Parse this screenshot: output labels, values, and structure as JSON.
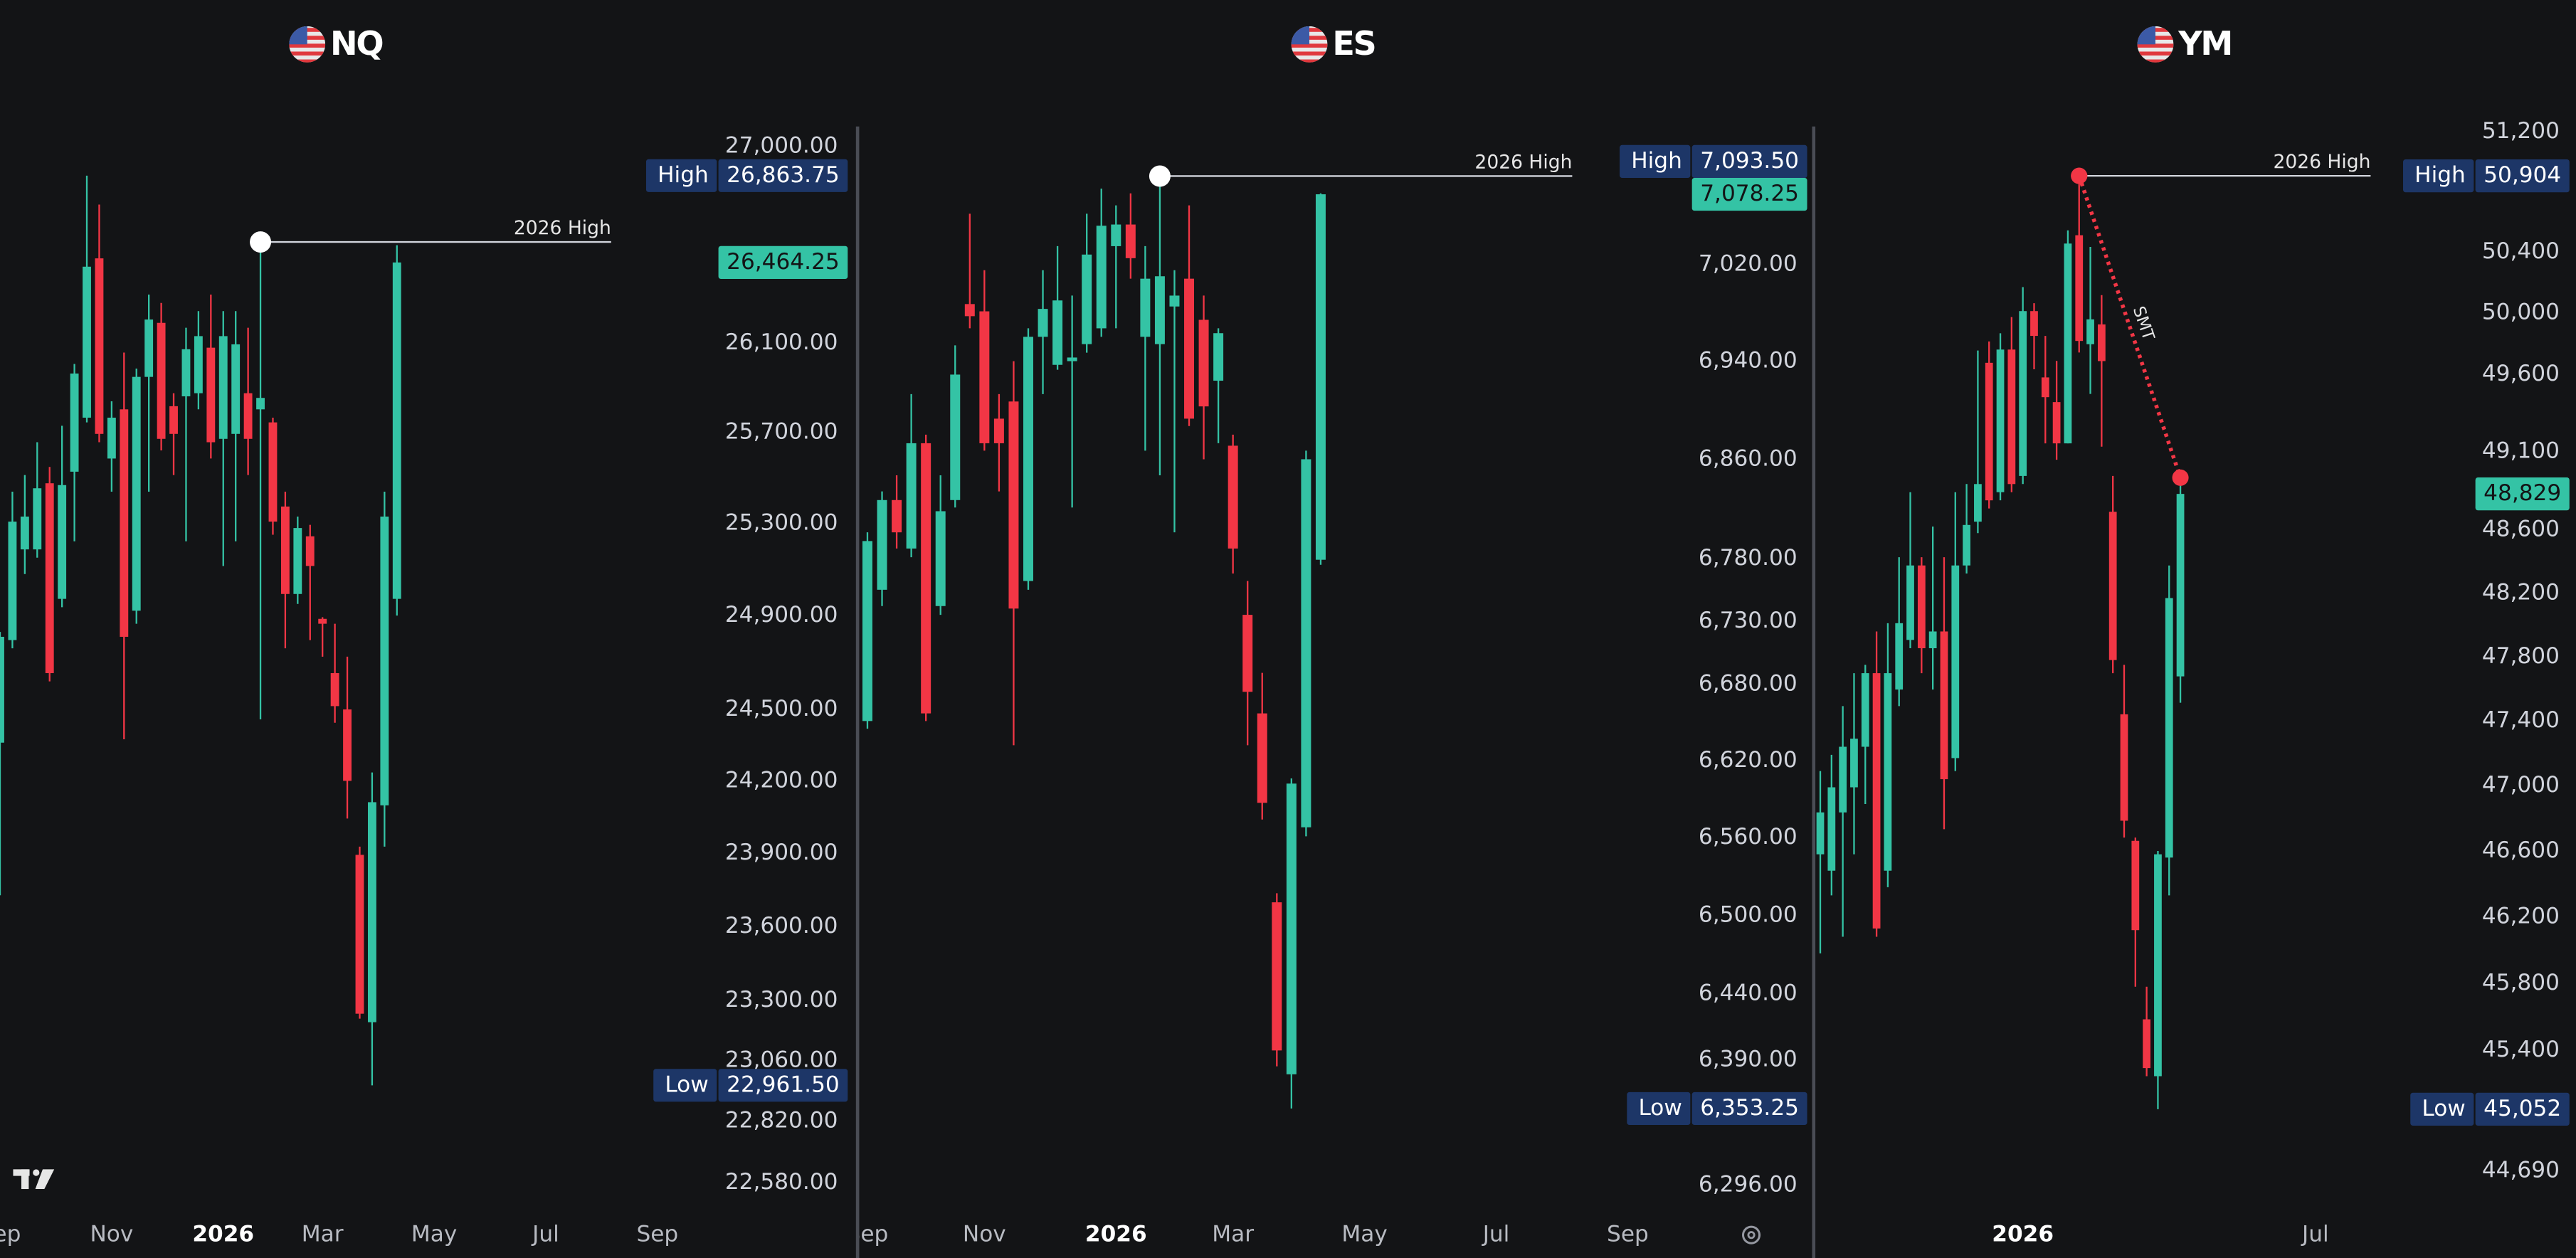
{
  "chart_data": [
    {
      "type": "candlestick",
      "title": "NQ",
      "log_scale": true,
      "grid": false,
      "up_color": "#34c3a5",
      "down_color": "#f23645",
      "categories": [
        "Sep",
        null,
        null,
        null,
        null,
        null,
        null,
        null,
        null,
        "Nov",
        null,
        null,
        null,
        null,
        null,
        null,
        null,
        null,
        "2026",
        null,
        null,
        null,
        null,
        null,
        null,
        null,
        "Mar",
        null,
        null,
        null,
        null,
        null,
        null,
        null,
        null,
        "May",
        null,
        null,
        null,
        null,
        null,
        null,
        null,
        null,
        "Jul",
        null,
        null,
        null,
        null,
        null,
        null,
        null,
        null,
        "Sep",
        null,
        null
      ],
      "open": [
        24360,
        24795,
        25186,
        25186,
        25475,
        24972,
        25526,
        25765,
        26483,
        25584,
        25802,
        24921,
        25947,
        26190,
        25816,
        25860,
        25874,
        26078,
        25671,
        25693,
        25874,
        25802,
        25744,
        25373,
        24993,
        25243,
        24886,
        24654,
        24500,
        23893,
        23213,
        24098,
        24972,
        null,
        null,
        null,
        null,
        null,
        null,
        null,
        null,
        null,
        null,
        null,
        null,
        null,
        null,
        null,
        null,
        null,
        null,
        null,
        null,
        null,
        null,
        null
      ],
      "high": [
        24830,
        25438,
        25511,
        25656,
        25547,
        25729,
        26005,
        26863.75,
        26730,
        25838,
        26056,
        25984,
        26318,
        26280,
        25874,
        26168,
        26243,
        26318,
        26243,
        26243,
        26168,
        26558,
        25765,
        25438,
        25329,
        25293,
        24893,
        24865,
        24724,
        23927,
        24235,
        25438,
        26543,
        null,
        null,
        null,
        null,
        null,
        null,
        null,
        null,
        null,
        null,
        null,
        null,
        null,
        null,
        null,
        null,
        null,
        null,
        null,
        null,
        null,
        null,
        null
      ],
      "low": [
        23727,
        24760,
        25079,
        25150,
        24619,
        24936,
        25221,
        25744,
        25656,
        25438,
        24374,
        24865,
        25438,
        25620,
        25511,
        25221,
        25802,
        25584,
        25114,
        25221,
        25511,
        24458,
        25250,
        24760,
        24950,
        24795,
        24724,
        24444,
        24043,
        23227,
        22961.5,
        23927,
        24900,
        null,
        null,
        null,
        null,
        null,
        null,
        null,
        null,
        null,
        null,
        null,
        null,
        null,
        null,
        null,
        null,
        null,
        null,
        null,
        null,
        null,
        null,
        null
      ],
      "close": [
        24809,
        25307,
        25329,
        25453,
        24654,
        25467,
        25962,
        26445,
        25693,
        25765,
        24809,
        25947,
        26205,
        25671,
        25693,
        26071,
        26130,
        25656,
        26130,
        26093,
        25671,
        25853,
        25307,
        24993,
        25279,
        25114,
        24865,
        24514,
        24200,
        23247,
        24111,
        25329,
        26464.25,
        null,
        null,
        null,
        null,
        null,
        null,
        null,
        null,
        null,
        null,
        null,
        null,
        null,
        null,
        null,
        null,
        null,
        null,
        null,
        null,
        null,
        null,
        null
      ],
      "ylim": [
        22465,
        27108
      ],
      "yticks": [
        {
          "value": 27000,
          "label": "27,000.00"
        },
        {
          "value": 26100,
          "label": "26,100.00"
        },
        {
          "value": 25700,
          "label": "25,700.00"
        },
        {
          "value": 25300,
          "label": "25,300.00"
        },
        {
          "value": 24900,
          "label": "24,900.00"
        },
        {
          "value": 24500,
          "label": "24,500.00"
        },
        {
          "value": 24200,
          "label": "24,200.00"
        },
        {
          "value": 23900,
          "label": "23,900.00"
        },
        {
          "value": 23600,
          "label": "23,600.00"
        },
        {
          "value": 23300,
          "label": "23,300.00"
        },
        {
          "value": 23060,
          "label": "23,060.00"
        },
        {
          "value": 22820,
          "label": "22,820.00"
        },
        {
          "value": 22580,
          "label": "22,580.00"
        }
      ],
      "levels": [
        {
          "label": "2026 High",
          "value": 26558,
          "color": "#ffffff"
        }
      ],
      "price_labels": [
        {
          "name": "High",
          "value": 26863.75,
          "label": "26,863.75",
          "color": "#1d3667"
        },
        {
          "name": "Low",
          "value": 22961.5,
          "label": "22,961.50",
          "color": "#1d3667"
        }
      ],
      "last_price": {
        "value": 26464.25,
        "label": "26,464.25",
        "color": "#34c3a5"
      }
    },
    {
      "type": "candlestick",
      "title": "ES",
      "log_scale": true,
      "grid": false,
      "up_color": "#34c3a5",
      "down_color": "#f23645",
      "categories": [
        "Sep",
        null,
        null,
        null,
        null,
        null,
        null,
        null,
        "Nov",
        null,
        null,
        null,
        null,
        null,
        null,
        null,
        null,
        "2026",
        null,
        null,
        null,
        null,
        null,
        null,
        null,
        "Mar",
        null,
        null,
        null,
        null,
        null,
        null,
        null,
        null,
        "May",
        null,
        null,
        null,
        null,
        null,
        null,
        null,
        null,
        "Jul",
        null,
        null,
        null,
        null,
        null,
        null,
        null,
        null,
        "Sep",
        null
      ],
      "open": [
        6651,
        6755,
        6827,
        6788,
        6873,
        6742,
        6827,
        6987,
        6981,
        6893,
        6907,
        6762,
        6960,
        6937,
        6940,
        6954,
        6967,
        7035,
        7053,
        6960,
        6954,
        6985,
        7008,
        6974,
        6924,
        6871,
        6735,
        6657,
        6510,
        6379,
        6568,
        6779,
        null,
        null,
        null,
        null,
        null,
        null,
        null,
        null,
        null,
        null,
        null,
        null,
        null,
        null,
        null,
        null,
        null,
        null,
        null,
        null,
        null,
        null
      ],
      "high": [
        6801,
        6834,
        6847,
        6913,
        6880,
        6847,
        6953,
        7062,
        7015,
        6913,
        6940,
        6967,
        7015,
        7035,
        6994,
        7062,
        7083,
        7069,
        7079,
        7035,
        7093.5,
        7015,
        7069,
        6994,
        6967,
        6880,
        6762,
        6689,
        6517,
        6606,
        6867,
        7079,
        null,
        null,
        null,
        null,
        null,
        null,
        null,
        null,
        null,
        null,
        null,
        null,
        null,
        null,
        null,
        null,
        null,
        null,
        null,
        null,
        null,
        null
      ],
      "low": [
        6645,
        6742,
        6788,
        6781,
        6651,
        6735,
        6821,
        6967,
        6867,
        6834,
        6632,
        6755,
        6913,
        6933,
        6821,
        6947,
        6960,
        6967,
        7008,
        6867,
        6847,
        6801,
        6887,
        6860,
        6873,
        6768,
        6632,
        6574,
        6385,
        6353.25,
        6561,
        6775,
        null,
        null,
        null,
        null,
        null,
        null,
        null,
        null,
        null,
        null,
        null,
        null,
        null,
        null,
        null,
        null,
        null,
        null,
        null,
        null,
        null,
        null
      ],
      "close": [
        6794,
        6827,
        6801,
        6873,
        6657,
        6818,
        6929,
        6977,
        6873,
        6873,
        6740,
        6960,
        6983,
        6990,
        6943,
        7028,
        7052,
        7053,
        7025,
        7008,
        7010,
        6994,
        6893,
        6903,
        6963,
        6788,
        6674,
        6587,
        6397,
        6602,
        6860,
        7078.25,
        null,
        null,
        null,
        null,
        null,
        null,
        null,
        null,
        null,
        null,
        null,
        null,
        null,
        null,
        null,
        null,
        null,
        null,
        null,
        null,
        null,
        null
      ],
      "ylim": [
        6276,
        7138
      ],
      "yticks": [
        {
          "value": 7020,
          "label": "7,020.00"
        },
        {
          "value": 6940,
          "label": "6,940.00"
        },
        {
          "value": 6860,
          "label": "6,860.00"
        },
        {
          "value": 6780,
          "label": "6,780.00"
        },
        {
          "value": 6730,
          "label": "6,730.00"
        },
        {
          "value": 6680,
          "label": "6,680.00"
        },
        {
          "value": 6620,
          "label": "6,620.00"
        },
        {
          "value": 6560,
          "label": "6,560.00"
        },
        {
          "value": 6500,
          "label": "6,500.00"
        },
        {
          "value": 6440,
          "label": "6,440.00"
        },
        {
          "value": 6390,
          "label": "6,390.00"
        },
        {
          "value": 6296,
          "label": "6,296.00"
        }
      ],
      "levels": [
        {
          "label": "2026 High",
          "value": 7093.5,
          "color": "#ffffff"
        }
      ],
      "price_labels": [
        {
          "name": "High",
          "value": 7093.5,
          "label": "7,093.50",
          "color": "#1d3667"
        },
        {
          "name": "Low",
          "value": 6353.25,
          "label": "6,353.25",
          "color": "#1d3667"
        }
      ],
      "last_price": {
        "value": 7078.25,
        "label": "7,078.25",
        "color": "#34c3a5"
      }
    },
    {
      "type": "candlestick",
      "title": "YM",
      "log_scale": true,
      "grid": false,
      "up_color": "#34c3a5",
      "down_color": "#f23645",
      "categories": [
        null,
        null,
        null,
        null,
        null,
        null,
        null,
        null,
        null,
        null,
        null,
        null,
        null,
        null,
        null,
        null,
        null,
        null,
        "2026",
        null,
        null,
        null,
        null,
        null,
        null,
        null,
        null,
        null,
        null,
        null,
        null,
        null,
        null,
        null,
        null,
        null,
        null,
        null,
        null,
        null,
        null,
        null,
        null,
        null,
        "Jul",
        null,
        null,
        null,
        null,
        null,
        null
      ],
      "open": [
        46580,
        46480,
        46836,
        46990,
        47240,
        47697,
        46480,
        47595,
        47905,
        48374,
        47853,
        47958,
        47170,
        48374,
        48652,
        49674,
        48840,
        49760,
        48944,
        50011,
        49579,
        49419,
        49153,
        50510,
        49795,
        49924,
        48715,
        47441,
        46662,
        45585,
        45247,
        46560,
        47677,
        null,
        null,
        null,
        null,
        null,
        null,
        null,
        null,
        null,
        null,
        null,
        null,
        null,
        null,
        null,
        null,
        null,
        null
      ],
      "high": [
        47090,
        47190,
        47492,
        47697,
        47749,
        47958,
        48010,
        48426,
        48840,
        48426,
        48621,
        48426,
        48840,
        48892,
        49754,
        49813,
        49866,
        49972,
        50168,
        50063,
        49849,
        49686,
        50542,
        50904,
        50433,
        50116,
        48944,
        47749,
        46682,
        45780,
        46600,
        48374,
        48933,
        null,
        null,
        null,
        null,
        null,
        null,
        null,
        null,
        null,
        null,
        null,
        null,
        null,
        null,
        null,
        null,
        null,
        null
      ],
      "low": [
        45980,
        46330,
        46080,
        46580,
        46887,
        46080,
        46380,
        47492,
        47853,
        47697,
        47595,
        46733,
        47090,
        48323,
        48579,
        48736,
        48788,
        48840,
        48892,
        49632,
        49153,
        49048,
        49153,
        49741,
        49472,
        49132,
        47697,
        46682,
        45780,
        45247,
        45052,
        46330,
        47513,
        null,
        null,
        null,
        null,
        null,
        null,
        null,
        null,
        null,
        null,
        null,
        null,
        null,
        null,
        null,
        null,
        null,
        null
      ],
      "close": [
        46836,
        46990,
        47240,
        47290,
        47697,
        46130,
        47697,
        48010,
        48374,
        47853,
        47958,
        47040,
        48374,
        48631,
        48892,
        48788,
        49760,
        48892,
        50011,
        49849,
        49451,
        49153,
        50455,
        49816,
        49957,
        49685,
        47779,
        46785,
        46120,
        45295,
        46580,
        48168,
        48829,
        null,
        null,
        null,
        null,
        null,
        null,
        null,
        null,
        null,
        null,
        null,
        null,
        null,
        null,
        null,
        null,
        null,
        null
      ],
      "ylim": [
        44450,
        51256
      ],
      "yticks": [
        {
          "value": 51200,
          "label": "51,200"
        },
        {
          "value": 50400,
          "label": "50,400"
        },
        {
          "value": 50000,
          "label": "50,000"
        },
        {
          "value": 49600,
          "label": "49,600"
        },
        {
          "value": 49100,
          "label": "49,100"
        },
        {
          "value": 48600,
          "label": "48,600"
        },
        {
          "value": 48200,
          "label": "48,200"
        },
        {
          "value": 47800,
          "label": "47,800"
        },
        {
          "value": 47400,
          "label": "47,400"
        },
        {
          "value": 47000,
          "label": "47,000"
        },
        {
          "value": 46600,
          "label": "46,600"
        },
        {
          "value": 46200,
          "label": "46,200"
        },
        {
          "value": 45800,
          "label": "45,800"
        },
        {
          "value": 45400,
          "label": "45,400"
        },
        {
          "value": 44690,
          "label": "44,690"
        }
      ],
      "levels": [
        {
          "label": "2026 High",
          "value": 50904,
          "color": "#f23645"
        }
      ],
      "annotations": [
        {
          "label": "SMT",
          "values": [
            50904,
            48933
          ],
          "color": "#f23645"
        }
      ],
      "price_labels": [
        {
          "name": "High",
          "value": 50904,
          "label": "50,904",
          "color": "#1d3667"
        },
        {
          "name": "Low",
          "value": 45052,
          "label": "45,052",
          "color": "#1d3667"
        }
      ],
      "last_price": {
        "value": 48829,
        "label": "48,829",
        "color": "#34c3a5"
      }
    }
  ]
}
